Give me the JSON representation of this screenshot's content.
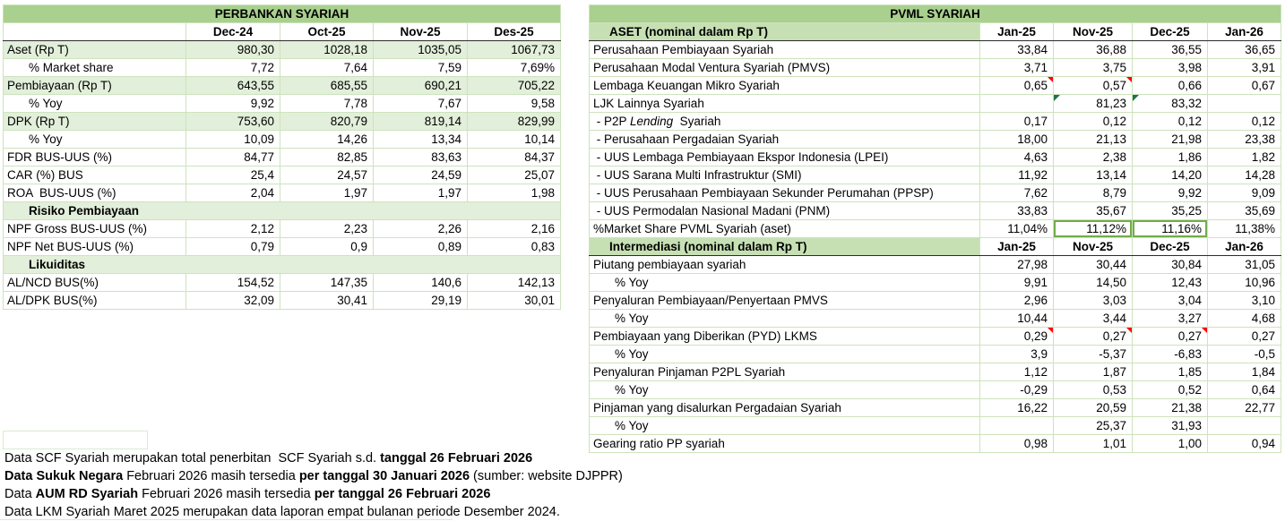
{
  "colors": {
    "title_band": "#A9D08E",
    "section_fill": "#C6E0B4",
    "shaded_row": "#E2EFDA",
    "grid": "#CDE3BC",
    "accent_green": "#70AD47",
    "comment_red": "#FF0000",
    "error_green": "#217346"
  },
  "left_table": {
    "title": "PERBANKAN SYARIAH",
    "rows": [
      {
        "type": "columns",
        "label": "",
        "values": [
          "Dec-24",
          "Oct-25",
          "Nov-25",
          "Des-25"
        ]
      },
      {
        "type": "data",
        "shaded": true,
        "label": "Aset (Rp T)",
        "values": [
          "980,30",
          "1028,18",
          "1035,05",
          "1067,73"
        ]
      },
      {
        "type": "data",
        "indent": true,
        "label": "% Market share",
        "values": [
          "7,72",
          "7,64",
          "7,59",
          "7,69%"
        ]
      },
      {
        "type": "data",
        "shaded": true,
        "label": "Pembiayaan (Rp T)",
        "values": [
          "643,55",
          "685,55",
          "690,21",
          "705,22"
        ]
      },
      {
        "type": "data",
        "indent": true,
        "label": "% Yoy",
        "values": [
          "9,92",
          "7,78",
          "7,67",
          "9,58"
        ]
      },
      {
        "type": "data",
        "shaded": true,
        "label": "DPK (Rp T)",
        "values": [
          "753,60",
          "820,79",
          "819,14",
          "829,99"
        ]
      },
      {
        "type": "data",
        "indent": true,
        "label": "% Yoy",
        "values": [
          "10,09",
          "14,26",
          "13,34",
          "10,14"
        ]
      },
      {
        "type": "data",
        "label": "FDR BUS-UUS (%)",
        "values": [
          "84,77",
          "82,85",
          "83,63",
          "84,37"
        ]
      },
      {
        "type": "data",
        "label": "CAR (%) BUS",
        "values": [
          "25,4",
          "24,57",
          "24,59",
          "25,07"
        ]
      },
      {
        "type": "data",
        "label": "ROA  BUS-UUS (%)",
        "values": [
          "2,04",
          "1,97",
          "1,97",
          "1,98"
        ]
      },
      {
        "type": "section",
        "label": "Risiko Pembiayaan"
      },
      {
        "type": "data",
        "label": "NPF Gross BUS-UUS (%)",
        "values": [
          "2,12",
          "2,23",
          "2,26",
          "2,16"
        ]
      },
      {
        "type": "data",
        "label": "NPF Net BUS-UUS (%)",
        "values": [
          "0,79",
          "0,9",
          "0,89",
          "0,83"
        ]
      },
      {
        "type": "section",
        "label": "Likuiditas"
      },
      {
        "type": "data",
        "label": "AL/NCD BUS(%)",
        "values": [
          "154,52",
          "147,35",
          "140,6",
          "142,13"
        ]
      },
      {
        "type": "data",
        "label": "AL/DPK BUS(%)",
        "values": [
          "32,09",
          "30,41",
          "29,19",
          "30,01"
        ]
      }
    ]
  },
  "right_table": {
    "title": "PVML SYARIAH",
    "rows": [
      {
        "type": "columns",
        "fill": true,
        "label": "ASET (nominal dalam Rp T)",
        "values": [
          "Jan-25",
          "Nov-25",
          "Dec-25",
          "Jan-26"
        ]
      },
      {
        "type": "data",
        "label": "Perusahaan Pembiayaan Syariah",
        "values": [
          "33,84",
          "36,88",
          "36,55",
          "36,65"
        ]
      },
      {
        "type": "data",
        "label": "Perusahaan Modal Ventura Syariah (PMVS)",
        "values": [
          "3,71",
          "3,75",
          "3,98",
          "3,91"
        ]
      },
      {
        "type": "data",
        "label": "Lembaga Keuangan Mikro Syariah",
        "values": [
          "0,65",
          "0,57",
          "0,66",
          "0,67"
        ],
        "marks": {
          "0": "red",
          "1": "red"
        }
      },
      {
        "type": "data",
        "label": "LJK Lainnya Syariah",
        "values": [
          "",
          "81,23",
          "83,32",
          ""
        ],
        "marks": {
          "1": "green",
          "2": "green"
        }
      },
      {
        "type": "data",
        "label": [
          {
            "t": " - P2P "
          },
          {
            "t": "Lending",
            "i": true
          },
          {
            "t": "  Syariah"
          }
        ],
        "values": [
          "0,17",
          "0,12",
          "0,12",
          "0,12"
        ]
      },
      {
        "type": "data",
        "label": " - Perusahaan Pergadaian Syariah",
        "values": [
          "18,00",
          "21,13",
          "21,98",
          "23,38"
        ]
      },
      {
        "type": "data",
        "label": " - UUS Lembaga Pembiayaan Ekspor Indonesia (LPEI)",
        "values": [
          "4,63",
          "2,38",
          "1,86",
          "1,82"
        ]
      },
      {
        "type": "data",
        "label": " - UUS Sarana Multi Infrastruktur (SMI)",
        "values": [
          "11,92",
          "13,14",
          "14,20",
          "14,28"
        ]
      },
      {
        "type": "data",
        "label": " - UUS Perusahaan Pembiayaan Sekunder Perumahan (PPSP)",
        "values": [
          "7,62",
          "8,79",
          "9,92",
          "9,09"
        ]
      },
      {
        "type": "data",
        "label": " - UUS Permodalan Nasional Madani (PNM)",
        "values": [
          "33,83",
          "35,67",
          "35,25",
          "35,69"
        ]
      },
      {
        "type": "data",
        "label": "%Market Share PVML Syariah (aset)",
        "values": [
          "11,04%",
          "11,12%",
          "11,16%",
          "11,38%"
        ],
        "green_border": [
          1,
          2
        ]
      },
      {
        "type": "columns",
        "fill": true,
        "label": "Intermediasi (nominal dalam Rp T)",
        "values": [
          "Jan-25",
          "Nov-25",
          "Dec-25",
          "Jan-26"
        ]
      },
      {
        "type": "data",
        "label": "Piutang pembiayaan syariah",
        "values": [
          "27,98",
          "30,44",
          "30,84",
          "31,05"
        ]
      },
      {
        "type": "data",
        "indent": true,
        "label": "% Yoy",
        "values": [
          "9,91",
          "14,50",
          "12,43",
          "10,96"
        ]
      },
      {
        "type": "data",
        "label": "Penyaluran Pembiayaan/Penyertaan PMVS",
        "values": [
          "2,96",
          "3,03",
          "3,04",
          "3,10"
        ]
      },
      {
        "type": "data",
        "indent": true,
        "label": "% Yoy",
        "values": [
          "10,44",
          "3,44",
          "3,27",
          "4,68"
        ]
      },
      {
        "type": "data",
        "label": "Pembiayaan yang Diberikan (PYD) LKMS",
        "values": [
          "0,29",
          "0,27",
          "0,27",
          "0,27"
        ],
        "marks": {
          "0": "red",
          "1": "red",
          "2": "red"
        }
      },
      {
        "type": "data",
        "indent": true,
        "label": "% Yoy",
        "values": [
          "3,9",
          "-5,37",
          "-6,83",
          "-0,5"
        ]
      },
      {
        "type": "data",
        "label": "Penyaluran Pinjaman P2PL Syariah",
        "values": [
          "1,12",
          "1,87",
          "1,85",
          "1,84"
        ]
      },
      {
        "type": "data",
        "indent": true,
        "label": "% Yoy",
        "values": [
          "-0,29",
          "0,53",
          "0,52",
          "0,64"
        ]
      },
      {
        "type": "data",
        "label": "Pinjaman yang disalurkan Pergadaian Syariah",
        "values": [
          "16,22",
          "20,59",
          "21,38",
          "22,77"
        ]
      },
      {
        "type": "data",
        "indent": true,
        "label": "% Yoy",
        "values": [
          "",
          "25,37",
          "31,93",
          ""
        ]
      },
      {
        "type": "data",
        "label": "Gearing ratio PP syariah",
        "values": [
          "0,98",
          "1,01",
          "1,00",
          "0,94"
        ]
      }
    ]
  },
  "notes": [
    {
      "segments": [
        {
          "t": "Data SCF Syariah merupakan total penerbitan  SCF Syariah s.d. "
        },
        {
          "t": "tanggal 26 Februari 2026",
          "b": true
        }
      ]
    },
    {
      "segments": [
        {
          "t": "Data Sukuk Negara",
          "b": true
        },
        {
          "t": " Februari 2026 masih tersedia "
        },
        {
          "t": "per tanggal 30 Januari 2026",
          "b": true
        },
        {
          "t": " (sumber: website DJPPR)"
        }
      ]
    },
    {
      "segments": [
        {
          "t": "Data "
        },
        {
          "t": "AUM RD Syariah",
          "b": true
        },
        {
          "t": " Februari 2026 masih tersedia "
        },
        {
          "t": "per tanggal 26 Februari 2026",
          "b": true
        }
      ]
    },
    {
      "segments": [
        {
          "t": "Data LKM Syariah Maret 2025 merupakan data laporan empat bulanan periode Desember 2024."
        }
      ]
    }
  ]
}
